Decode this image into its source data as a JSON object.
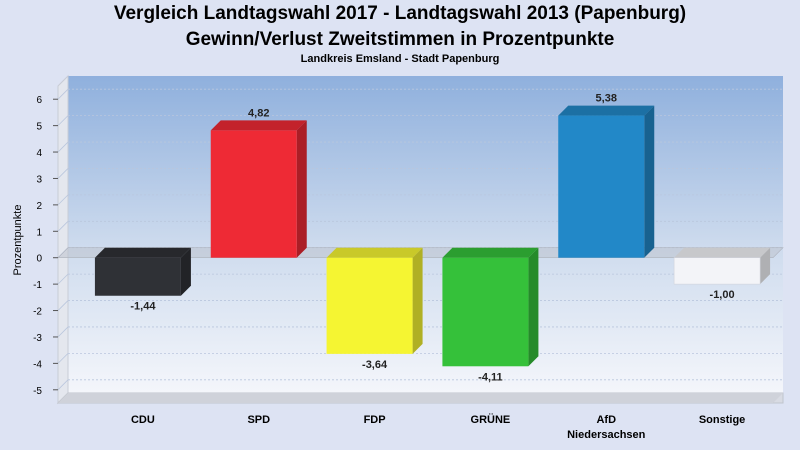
{
  "header": {
    "title_line1": "Vergleich Landtagswahl 2017 - Landtagswahl 2013 (Papenburg)",
    "title_line2": "Gewinn/Verlust Zweitstimmen in Prozentpunkte",
    "subtitle": "Landkreis Emsland - Stadt Papenburg"
  },
  "chart_data": {
    "type": "bar",
    "title": "Vergleich Landtagswahl 2017 - Landtagswahl 2013 (Papenburg) / Gewinn/Verlust Zweitstimmen in Prozentpunkte",
    "subtitle": "Landkreis Emsland - Stadt Papenburg",
    "categories": [
      {
        "label": "CDU",
        "label2": ""
      },
      {
        "label": "SPD",
        "label2": ""
      },
      {
        "label": "FDP",
        "label2": ""
      },
      {
        "label": "GRÜNE",
        "label2": ""
      },
      {
        "label": "AfD",
        "label2": "Niedersachsen"
      },
      {
        "label": "Sonstige",
        "label2": ""
      }
    ],
    "values": [
      -1.44,
      4.82,
      -3.64,
      -4.11,
      5.38,
      -1.0
    ],
    "value_labels": [
      "-1,44",
      "4,82",
      "-3,64",
      "-4,11",
      "5,38",
      "-1,00"
    ],
    "colors": [
      "#2f3136",
      "#ee2a35",
      "#f5f532",
      "#35c13a",
      "#2288c8",
      "#f3f4f8"
    ],
    "ylabel": "Prozentpunkte",
    "xlabel": "",
    "ylim": [
      -5.5,
      6.5
    ],
    "yticks": [
      6,
      5,
      4,
      3,
      2,
      1,
      0,
      -1,
      -2,
      -3,
      -4,
      -5
    ],
    "grid": true
  }
}
